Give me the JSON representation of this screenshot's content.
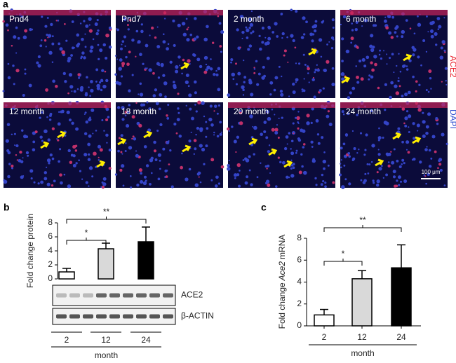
{
  "panel_a": {
    "label": "a",
    "tiles": [
      "Pnd4",
      "Pnd7",
      "2 month",
      "6 month",
      "12 month",
      "18 month",
      "20 month",
      "24 month"
    ],
    "stain_red": "ACE2",
    "stain_blue": "DAPI",
    "scale_bar": "100 μm"
  },
  "chart_data": [
    {
      "type": "bar",
      "panel": "b",
      "ylabel": "Fold change protein",
      "xlabel": "month",
      "categories": [
        "2",
        "12",
        "24"
      ],
      "values": [
        1.0,
        4.3,
        5.3
      ],
      "errors": [
        0.5,
        0.8,
        2.1
      ],
      "colors": [
        "#ffffff",
        "#d9d9d9",
        "#000000"
      ],
      "ylim": [
        0,
        8
      ],
      "yticks": [
        0,
        2,
        4,
        6,
        8
      ],
      "annotations": [
        "*",
        "**"
      ],
      "blot_labels": [
        "ACE2",
        "β-ACTIN"
      ]
    },
    {
      "type": "bar",
      "panel": "c",
      "ylabel_parts": [
        "Fold change",
        "Ace2",
        "mRNA"
      ],
      "xlabel": "month",
      "categories": [
        "2",
        "12",
        "24"
      ],
      "values": [
        1.0,
        4.3,
        5.3
      ],
      "errors": [
        0.5,
        0.75,
        2.1
      ],
      "colors": [
        "#ffffff",
        "#d9d9d9",
        "#000000"
      ],
      "ylim": [
        0,
        8
      ],
      "yticks": [
        0,
        2,
        4,
        6,
        8
      ],
      "annotations": [
        "*",
        "**"
      ]
    }
  ]
}
